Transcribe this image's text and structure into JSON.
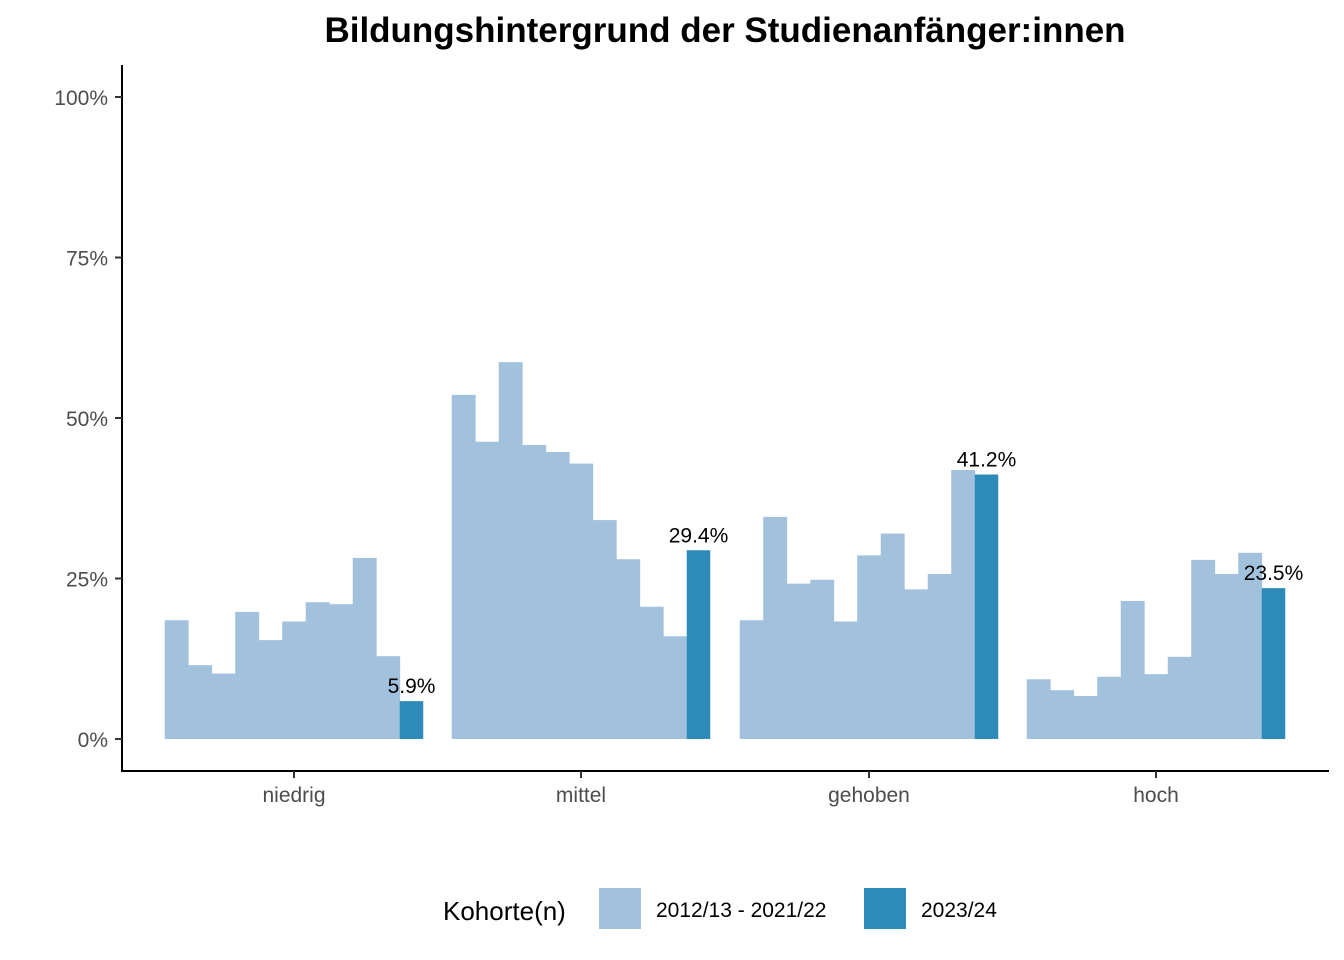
{
  "chart_data": {
    "type": "bar",
    "title": "Bildungshintergrund der Studienanfänger:innen",
    "xlabel": "",
    "ylabel": "",
    "categories": [
      "niedrig",
      "mittel",
      "gehoben",
      "hoch"
    ],
    "y_ticks": [
      0,
      25,
      50,
      75,
      100
    ],
    "y_tick_labels": [
      "0%",
      "25%",
      "50%",
      "75%",
      "100%"
    ],
    "ylim": [
      -5,
      105
    ],
    "grid": false,
    "legend": {
      "title": "Kohorte(n)",
      "placement": "bottom",
      "entries": [
        "2012/13 - 2021/22",
        "2023/24"
      ]
    },
    "series": [
      {
        "name": "2012/13 - 2021/22",
        "color": "#a1c1dd",
        "values": [
          [
            18.5,
            11.5,
            10.2,
            19.8,
            15.4,
            18.3,
            21.3,
            21.0,
            28.2,
            12.9
          ],
          [
            53.6,
            46.3,
            58.7,
            45.8,
            44.7,
            42.9,
            34.1,
            28.0,
            20.6,
            16.0
          ],
          [
            18.5,
            34.6,
            24.2,
            24.8,
            18.3,
            28.6,
            32.0,
            23.3,
            25.7,
            41.9
          ],
          [
            9.3,
            7.6,
            6.7,
            9.7,
            21.5,
            10.1,
            12.8,
            27.9,
            25.7,
            29.0
          ]
        ]
      },
      {
        "name": "2023/24",
        "color": "#2e8bb9",
        "values": [
          5.9,
          29.4,
          41.2,
          23.5
        ],
        "labels": [
          "5.9%",
          "29.4%",
          "41.2%",
          "23.5%"
        ]
      }
    ]
  }
}
